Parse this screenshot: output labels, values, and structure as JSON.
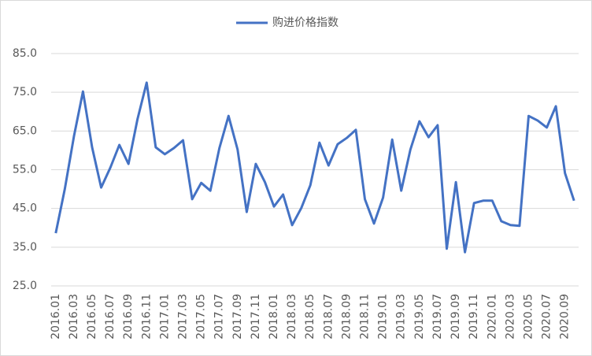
{
  "chart_data": {
    "type": "line",
    "categories": [
      "2016.01",
      null,
      "2016.03",
      null,
      "2016.05",
      null,
      "2016.07",
      null,
      "2016.09",
      null,
      "2016.11",
      null,
      "2017.01",
      null,
      "2017.03",
      null,
      "2017.05",
      null,
      "2017.07",
      null,
      "2017.09",
      null,
      "2017.11",
      null,
      "2018.01",
      null,
      "2018.03",
      null,
      "2018.05",
      null,
      "2018.07",
      null,
      "2018.09",
      null,
      "2018.11",
      null,
      "2019.01",
      null,
      "2019.03",
      null,
      "2019.05",
      null,
      "2019.07",
      null,
      "2019.09",
      null,
      "2019.11",
      null,
      "2020.01",
      null,
      "2020.03",
      null,
      "2020.05",
      null,
      "2020.07",
      null,
      "2020.09",
      null
    ],
    "series": [
      {
        "name": "购进价格指数",
        "color": "#4472c4",
        "values": [
          38.6,
          50,
          63.6,
          75.2,
          60.8,
          50.4,
          55.5,
          61.4,
          56.5,
          68.1,
          77.5,
          60.8,
          59,
          60.6,
          62.6,
          47.4,
          51.6,
          49.6,
          60.6,
          68.9,
          60.2,
          44.1,
          56.5,
          51.8,
          45.5,
          48.6,
          40.7,
          45.1,
          51,
          62,
          56.1,
          61.6,
          63.2,
          65.3,
          47.4,
          41.1,
          47.8,
          62.8,
          49.6,
          60.2,
          67.5,
          63.4,
          66.5,
          34.6,
          51.8,
          33.7,
          46.4,
          47,
          47,
          41.7,
          40.7,
          40.5,
          68.9,
          67.7,
          65.9,
          71.4,
          54.1,
          47
        ]
      }
    ],
    "ylim": [
      25,
      85
    ],
    "yticks": [
      {
        "value": 25,
        "label": "25.0"
      },
      {
        "value": 35,
        "label": "35.0"
      },
      {
        "value": 45,
        "label": "45.0"
      },
      {
        "value": 55,
        "label": "55.0"
      },
      {
        "value": 65,
        "label": "65.0"
      },
      {
        "value": 75,
        "label": "75.0"
      },
      {
        "value": 85,
        "label": "85.0"
      }
    ],
    "grid": true,
    "legend": "top"
  }
}
